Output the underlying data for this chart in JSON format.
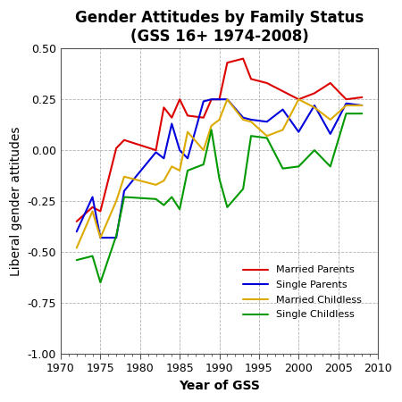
{
  "title": "Gender Attitudes by Family Status",
  "subtitle": "(GSS 16+ 1974-2008)",
  "xlabel": "Year of GSS",
  "ylabel": "Liberal gender attitudes",
  "xlim": [
    1970,
    2010
  ],
  "ylim": [
    -1.0,
    0.5
  ],
  "yticks": [
    -1.0,
    -0.75,
    -0.5,
    -0.25,
    0.0,
    0.25,
    0.5
  ],
  "xticks": [
    1970,
    1975,
    1980,
    1985,
    1990,
    1995,
    2000,
    2005,
    2010
  ],
  "series": {
    "Married Parents": {
      "color": "#dd0000",
      "x": [
        1972,
        1974,
        1975,
        1977,
        1978,
        1982,
        1983,
        1984,
        1985,
        1986,
        1988,
        1989,
        1990,
        1991,
        1993,
        1994,
        1996,
        1998,
        2000,
        2002,
        2004,
        2006,
        2008
      ],
      "y": [
        -0.35,
        -0.28,
        -0.3,
        0.01,
        0.05,
        0.0,
        0.21,
        0.16,
        0.25,
        0.17,
        0.16,
        0.25,
        0.25,
        0.43,
        0.45,
        0.35,
        0.33,
        0.29,
        0.25,
        0.28,
        0.33,
        0.25,
        0.26
      ]
    },
    "Single Parents": {
      "color": "#0000dd",
      "x": [
        1972,
        1974,
        1975,
        1977,
        1978,
        1982,
        1983,
        1984,
        1985,
        1986,
        1988,
        1989,
        1990,
        1991,
        1993,
        1994,
        1996,
        1998,
        2000,
        2002,
        2004,
        2006,
        2008
      ],
      "y": [
        -0.4,
        -0.23,
        -0.43,
        -0.43,
        -0.2,
        -0.01,
        -0.04,
        0.13,
        0.0,
        -0.04,
        0.24,
        0.25,
        0.25,
        0.25,
        0.16,
        0.15,
        0.14,
        0.2,
        0.09,
        0.22,
        0.08,
        0.23,
        0.22
      ]
    },
    "Married Childless": {
      "color": "#ddaa00",
      "x": [
        1972,
        1974,
        1975,
        1977,
        1978,
        1982,
        1983,
        1984,
        1985,
        1986,
        1988,
        1989,
        1990,
        1991,
        1993,
        1994,
        1996,
        1998,
        2000,
        2002,
        2004,
        2006,
        2008
      ],
      "y": [
        -0.48,
        -0.3,
        -0.43,
        -0.25,
        -0.13,
        -0.17,
        -0.15,
        -0.08,
        -0.1,
        0.09,
        0.0,
        0.12,
        0.15,
        0.25,
        0.15,
        0.14,
        0.07,
        0.1,
        0.25,
        0.21,
        0.15,
        0.22,
        0.22
      ]
    },
    "Single Childless": {
      "color": "#009900",
      "x": [
        1972,
        1974,
        1975,
        1977,
        1978,
        1982,
        1983,
        1984,
        1985,
        1986,
        1988,
        1989,
        1990,
        1991,
        1993,
        1994,
        1996,
        1998,
        2000,
        2002,
        2004,
        2006,
        2008
      ],
      "y": [
        -0.54,
        -0.52,
        -0.65,
        -0.42,
        -0.23,
        -0.24,
        -0.27,
        -0.23,
        -0.29,
        -0.1,
        -0.07,
        0.1,
        -0.14,
        -0.28,
        -0.19,
        0.07,
        0.06,
        -0.09,
        -0.08,
        0.0,
        -0.08,
        0.18,
        0.18
      ]
    }
  },
  "grid_color": "#aaaaaa",
  "background_color": "#ffffff",
  "spine_color": "#555555",
  "title_fontsize": 12,
  "subtitle_fontsize": 10,
  "axis_label_fontsize": 10,
  "tick_fontsize": 9,
  "legend_fontsize": 8,
  "linewidth": 1.5
}
